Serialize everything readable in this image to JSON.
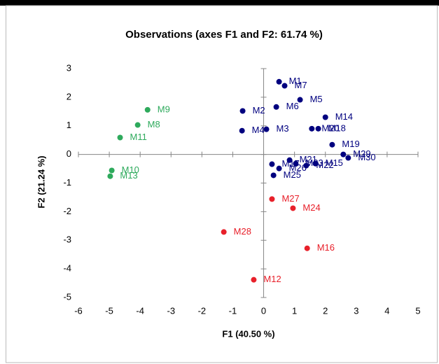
{
  "chart_data": {
    "type": "scatter",
    "title": "Observations (axes F1 and F2: 61.74 %)",
    "x_label": "F1 (40.50 %)",
    "y_label": "F2 (21.24 %)",
    "xlim": [
      -6,
      5
    ],
    "xticks": [
      -6,
      -5,
      -4,
      -3,
      -2,
      -1,
      0,
      1,
      2,
      3,
      4,
      5
    ],
    "ylim": [
      -5,
      3
    ],
    "yticks": [
      -5,
      -4,
      -3,
      -2,
      -1,
      0,
      1,
      2,
      3
    ],
    "series": [
      {
        "color": "#00007f",
        "labels": [
          "M1",
          "M7",
          "M6",
          "M5",
          "M2",
          "M4",
          "M3",
          "M14",
          "M20",
          "M18",
          "M19",
          "M29",
          "M30",
          "M21",
          "M23",
          "M22",
          "M15",
          "M17",
          "M26",
          "M25"
        ],
        "x": [
          0.5,
          0.68,
          0.41,
          1.18,
          -0.68,
          -0.7,
          0.09,
          2.0,
          1.56,
          1.77,
          2.22,
          2.58,
          2.74,
          0.84,
          1.04,
          1.38,
          1.68,
          0.27,
          0.5,
          0.32
        ],
        "y": [
          2.54,
          2.4,
          1.66,
          1.91,
          1.52,
          0.83,
          0.88,
          1.3,
          0.9,
          0.9,
          0.34,
          0.0,
          -0.12,
          -0.2,
          -0.32,
          -0.39,
          -0.32,
          -0.34,
          -0.49,
          -0.73
        ]
      },
      {
        "color": "#2eaa5c",
        "labels": [
          "M9",
          "M8",
          "M11",
          "M10",
          "M13"
        ],
        "x": [
          -3.76,
          -4.08,
          -4.65,
          -4.92,
          -4.97
        ],
        "y": [
          1.56,
          1.03,
          0.59,
          -0.56,
          -0.76
        ]
      },
      {
        "color": "#e8202a",
        "labels": [
          "M27",
          "M24",
          "M28",
          "M16",
          "M12"
        ],
        "x": [
          0.27,
          0.95,
          -1.29,
          1.41,
          -0.32
        ],
        "y": [
          -1.56,
          -1.88,
          -2.71,
          -3.28,
          -4.38
        ]
      }
    ]
  }
}
